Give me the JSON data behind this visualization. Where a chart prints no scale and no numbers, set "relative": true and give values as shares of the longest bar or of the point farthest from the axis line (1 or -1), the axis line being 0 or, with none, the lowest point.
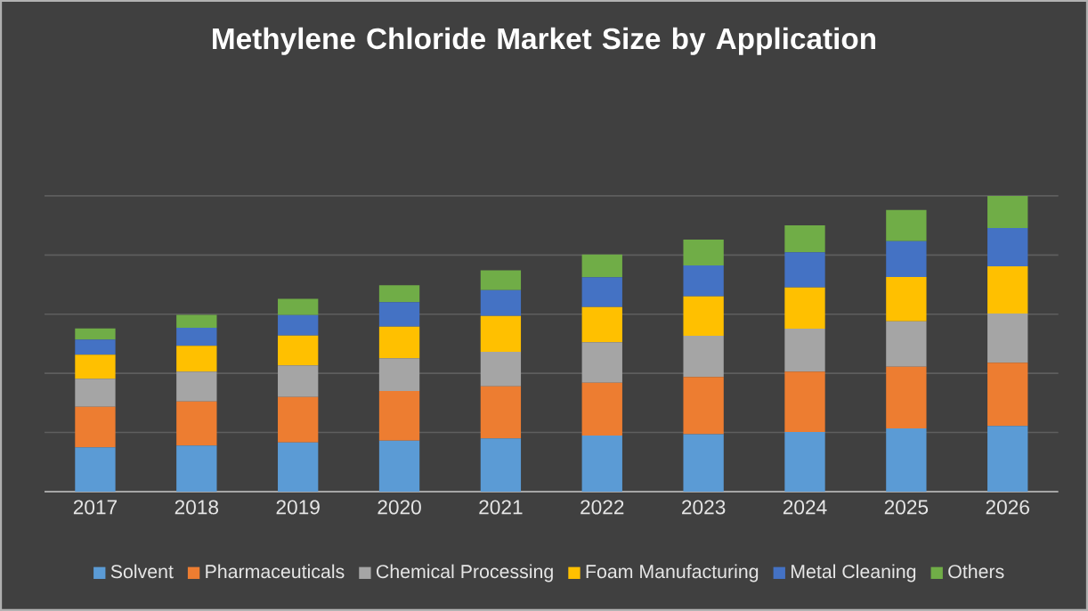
{
  "chart_data": {
    "type": "bar",
    "title": "Methylene Chloride Market Size by Application",
    "stacked": true,
    "relative": true,
    "grid": "y",
    "legend": "bottom",
    "categories": [
      "2017",
      "2018",
      "2019",
      "2020",
      "2021",
      "2022",
      "2023",
      "2024",
      "2025",
      "2026"
    ],
    "series": [
      {
        "name": "Solvent",
        "color": "#5b9bd5",
        "values": [
          0.15,
          0.156,
          0.166,
          0.172,
          0.18,
          0.19,
          0.194,
          0.202,
          0.214,
          0.222
        ]
      },
      {
        "name": "Pharmaceuticals",
        "color": "#ed7d31",
        "values": [
          0.137,
          0.149,
          0.154,
          0.168,
          0.176,
          0.178,
          0.194,
          0.204,
          0.208,
          0.214
        ]
      },
      {
        "name": "Chemical Processing",
        "color": "#a5a5a5",
        "values": [
          0.095,
          0.101,
          0.107,
          0.111,
          0.117,
          0.137,
          0.139,
          0.145,
          0.154,
          0.166
        ]
      },
      {
        "name": "Foam Manufacturing",
        "color": "#ffc000",
        "values": [
          0.081,
          0.087,
          0.101,
          0.107,
          0.121,
          0.119,
          0.133,
          0.139,
          0.15,
          0.16
        ]
      },
      {
        "name": "Metal Cleaning",
        "color": "#4472c4",
        "values": [
          0.051,
          0.061,
          0.069,
          0.083,
          0.087,
          0.101,
          0.105,
          0.119,
          0.121,
          0.129
        ]
      },
      {
        "name": "Others",
        "color": "#70ad47",
        "values": [
          0.038,
          0.044,
          0.055,
          0.057,
          0.067,
          0.077,
          0.087,
          0.091,
          0.105,
          0.109
        ]
      }
    ]
  }
}
